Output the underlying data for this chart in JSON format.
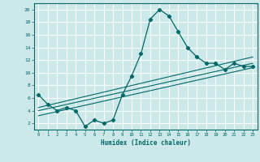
{
  "xlabel": "Humidex (Indice chaleur)",
  "ylabel": "",
  "bg_color": "#cce8e8",
  "grid_color": "#ffffff",
  "line_color": "#006868",
  "xlim": [
    -0.5,
    23.5
  ],
  "ylim": [
    1,
    21
  ],
  "xticks": [
    0,
    1,
    2,
    3,
    4,
    5,
    6,
    7,
    8,
    9,
    10,
    11,
    12,
    13,
    14,
    15,
    16,
    17,
    18,
    19,
    20,
    21,
    22,
    23
  ],
  "yticks": [
    2,
    4,
    6,
    8,
    10,
    12,
    14,
    16,
    18,
    20
  ],
  "main_x": [
    0,
    1,
    2,
    3,
    4,
    5,
    6,
    7,
    8,
    9,
    10,
    11,
    12,
    13,
    14,
    15,
    16,
    17,
    18,
    19,
    20,
    21,
    22,
    23
  ],
  "main_y": [
    6.5,
    5.0,
    4.0,
    4.5,
    4.0,
    1.5,
    2.5,
    2.0,
    2.5,
    6.5,
    9.5,
    13.0,
    18.5,
    20.0,
    19.0,
    16.5,
    14.0,
    12.5,
    11.5,
    11.5,
    10.5,
    11.5,
    11.0,
    11.0
  ],
  "trend1_x": [
    0,
    23
  ],
  "trend1_y": [
    4.5,
    12.5
  ],
  "trend2_x": [
    0,
    23
  ],
  "trend2_y": [
    4.0,
    11.5
  ],
  "trend3_x": [
    0,
    23
  ],
  "trend3_y": [
    3.2,
    10.8
  ]
}
